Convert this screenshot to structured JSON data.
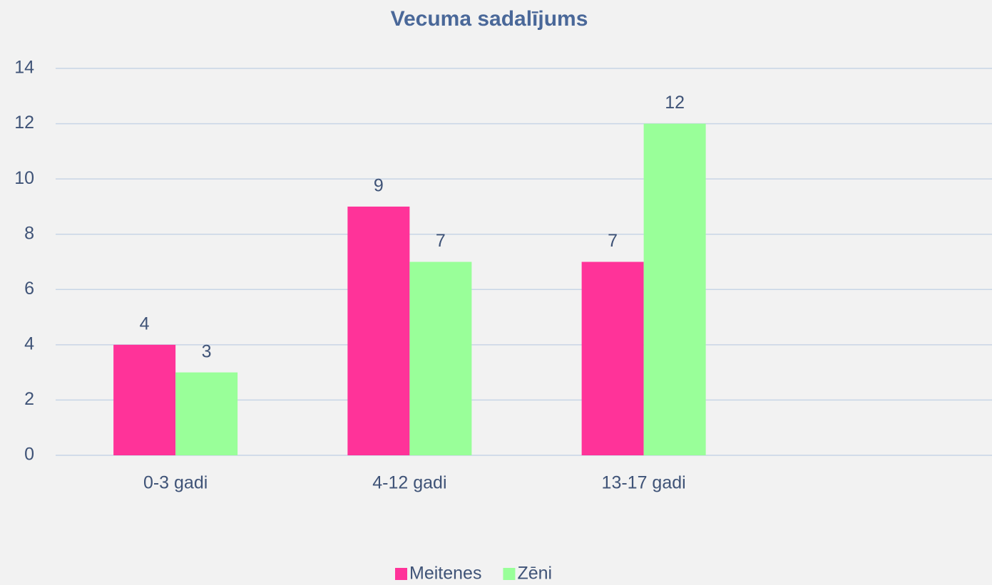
{
  "chart_data": {
    "type": "bar",
    "title": "Vecuma sadalījums",
    "categories": [
      "0-3 gadi",
      "4-12 gadi",
      "13-17 gadi",
      null
    ],
    "series": [
      {
        "name": "Meitenes",
        "color": "#ff3399",
        "values": [
          4,
          9,
          7,
          null
        ]
      },
      {
        "name": "Zēni",
        "color": "#99ff99",
        "values": [
          3,
          7,
          12,
          null
        ]
      }
    ],
    "ylim": [
      0,
      14
    ],
    "yticks": [
      0,
      2,
      4,
      6,
      8,
      10,
      12,
      14
    ],
    "grid": true,
    "legend": "bottom"
  }
}
